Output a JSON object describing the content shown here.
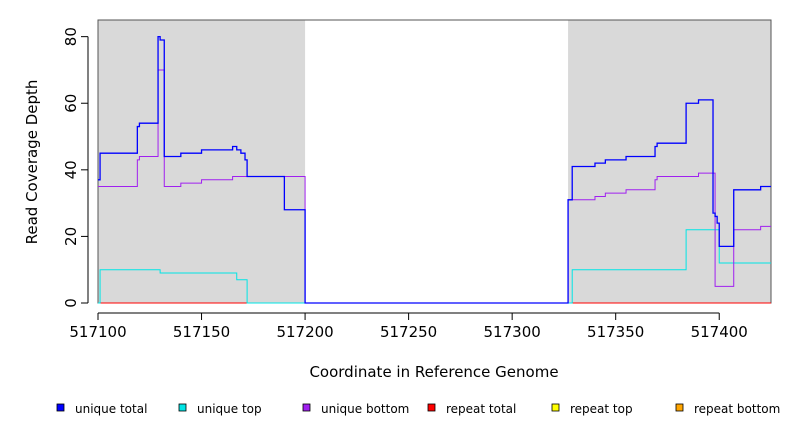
{
  "chart_data": {
    "type": "line",
    "xlabel": "Coordinate in Reference Genome",
    "ylabel": "Read Coverage Depth",
    "xlim": [
      517100,
      517425
    ],
    "ylim": [
      0,
      85
    ],
    "x_ticks": [
      517100,
      517150,
      517200,
      517250,
      517300,
      517350,
      517400
    ],
    "y_ticks": [
      0,
      20,
      40,
      60,
      80
    ],
    "shaded_regions": [
      [
        517100,
        517200
      ],
      [
        517327,
        517425
      ]
    ],
    "legend_position": "bottom",
    "series": [
      {
        "name": "unique total",
        "color": "#0000ff",
        "x": [
          517100,
          517101,
          517119,
          517120,
          517129,
          517130,
          517132,
          517140,
          517150,
          517165,
          517167,
          517169,
          517171,
          517172,
          517190,
          517200,
          517327,
          517329,
          517340,
          517345,
          517355,
          517369,
          517370,
          517384,
          517390,
          517397,
          517398,
          517399,
          517400,
          517407,
          517420,
          517425
        ],
        "y": [
          37,
          45,
          53,
          54,
          80,
          79,
          44,
          45,
          46,
          47,
          46,
          45,
          43,
          38,
          28,
          0,
          31,
          41,
          42,
          43,
          44,
          47,
          48,
          60,
          61,
          27,
          26,
          24,
          17,
          34,
          35,
          35
        ]
      },
      {
        "name": "unique top",
        "color": "#00e5e5",
        "x": [
          517100,
          517101,
          517129,
          517130,
          517165,
          517167,
          517170,
          517172,
          517327,
          517329,
          517384,
          517398,
          517400,
          517425
        ],
        "y": [
          0,
          10,
          10,
          9,
          9,
          7,
          7,
          0,
          0,
          10,
          22,
          22,
          12,
          12
        ],
        "step_points": true
      },
      {
        "name": "unique bottom",
        "color": "#a020f0",
        "x": [
          517100,
          517119,
          517120,
          517129,
          517130,
          517132,
          517140,
          517150,
          517165,
          517190,
          517200,
          517327,
          517329,
          517340,
          517345,
          517355,
          517369,
          517370,
          517390,
          517397,
          517398,
          517407,
          517420,
          517425
        ],
        "y": [
          35,
          43,
          44,
          70,
          70,
          35,
          36,
          37,
          38,
          38,
          0,
          31,
          31,
          32,
          33,
          34,
          37,
          38,
          39,
          39,
          5,
          22,
          23,
          23
        ]
      },
      {
        "name": "repeat total",
        "color": "#ff0000",
        "x": [
          517100,
          517425
        ],
        "y": [
          0,
          0
        ]
      },
      {
        "name": "repeat top",
        "color": "#ffff00",
        "x": [
          517100,
          517425
        ],
        "y": [
          0,
          0
        ]
      },
      {
        "name": "repeat bottom",
        "color": "#ffa500",
        "x": [
          517100,
          517425
        ],
        "y": [
          0,
          0
        ]
      }
    ]
  }
}
